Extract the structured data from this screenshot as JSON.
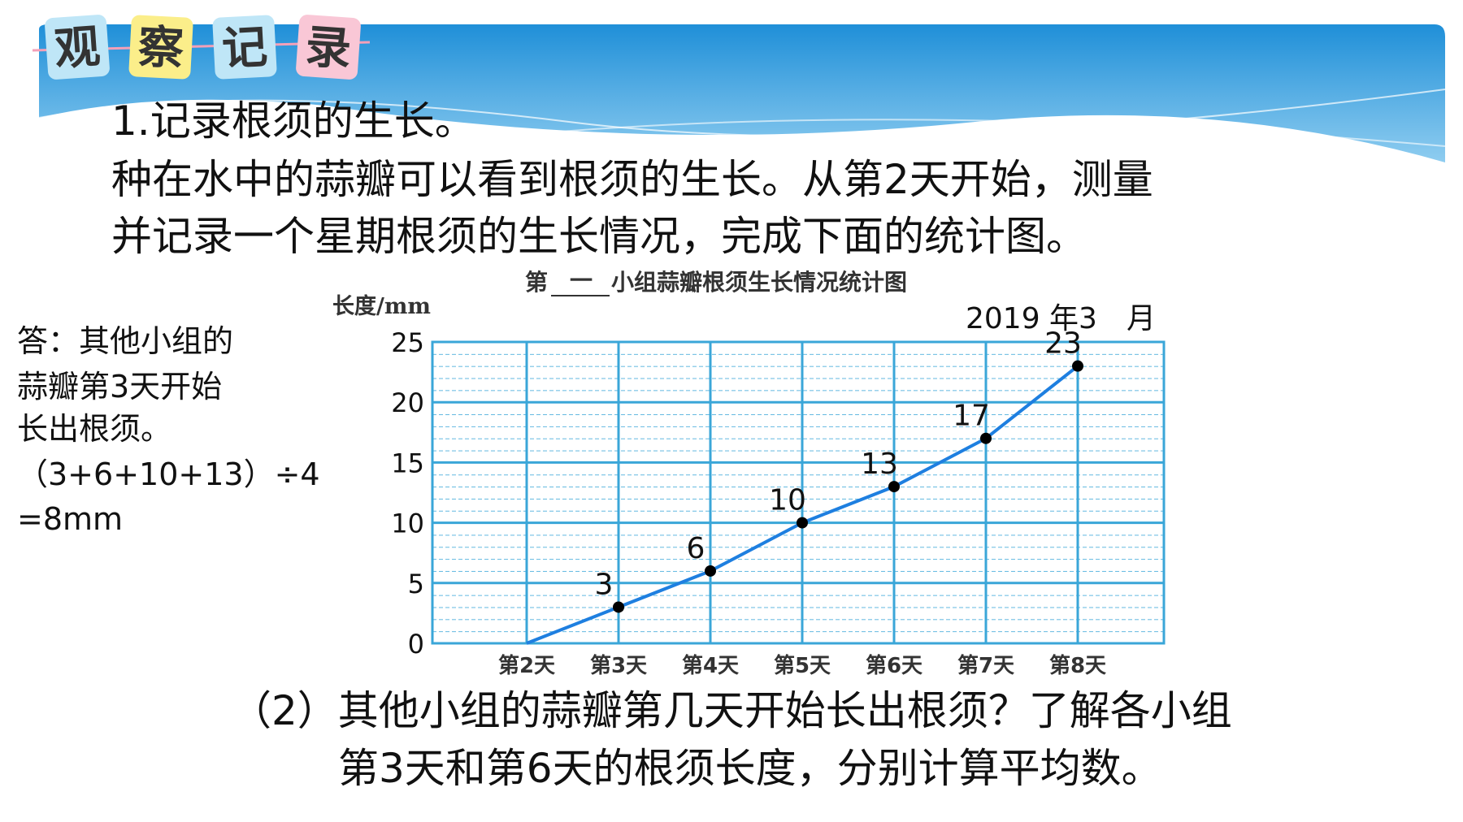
{
  "header": {
    "tiles": [
      "观",
      "察",
      "记",
      "录"
    ]
  },
  "intro": {
    "heading": "1.记录根须的生长。",
    "lines": [
      "种在水中的蒜瓣可以看到根须的生长。从第2天开始，测量",
      "并记录一个星期根须的生长情况，完成下面的统计图。"
    ]
  },
  "answer": {
    "lines": [
      "答：其他小组的",
      "蒜瓣第3天开始",
      "长出根须。",
      "（3+6+10+13）÷4",
      "=8mm"
    ]
  },
  "question": {
    "lines": [
      "（2）其他小组的蒜瓣第几天开始长出根须？了解各小组",
      "第3天和第6天的根须长度，分别计算平均数。"
    ]
  },
  "chart_data": {
    "type": "line",
    "title_prefix": "第",
    "title_fill": "一",
    "title": "小组蒜瓣根须生长情况统计图",
    "y_label": "长度/mm",
    "date_note": "2019 年3　月",
    "categories": [
      "第2天",
      "第3天",
      "第4天",
      "第5天",
      "第6天",
      "第7天",
      "第8天"
    ],
    "series": [
      {
        "color": "#1e7fe0",
        "values": [
          0,
          3,
          6,
          10,
          13,
          17,
          23
        ]
      }
    ],
    "ylim": [
      0,
      25
    ],
    "yticks": [
      0,
      5,
      10,
      15,
      20,
      25
    ],
    "grid": true,
    "grid_color": "#3aa6d8",
    "marker_color": "#000000"
  }
}
